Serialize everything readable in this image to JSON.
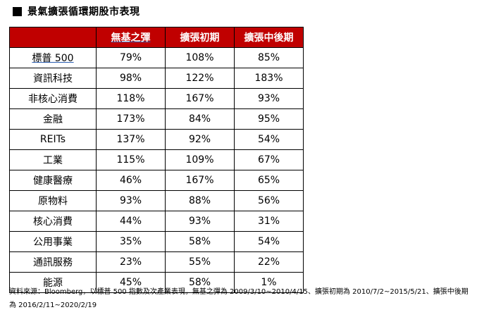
{
  "title": "景氣擴張循環期股市表現",
  "table": {
    "headers": [
      "",
      "無基之彈",
      "擴張初期",
      "擴張中後期"
    ],
    "rows": [
      {
        "label": "標普 500",
        "values": [
          "79%",
          "108%",
          "85%"
        ]
      },
      {
        "label": "資訊科技",
        "values": [
          "98%",
          "122%",
          "183%"
        ]
      },
      {
        "label": "非核心消費",
        "values": [
          "118%",
          "167%",
          "93%"
        ]
      },
      {
        "label": "金融",
        "values": [
          "173%",
          "84%",
          "95%"
        ]
      },
      {
        "label": "REITs",
        "values": [
          "137%",
          "92%",
          "54%"
        ]
      },
      {
        "label": "工業",
        "values": [
          "115%",
          "109%",
          "67%"
        ]
      },
      {
        "label": "健康醫療",
        "values": [
          "46%",
          "167%",
          "65%"
        ]
      },
      {
        "label": "原物料",
        "values": [
          "93%",
          "88%",
          "56%"
        ]
      },
      {
        "label": "核心消費",
        "values": [
          "44%",
          "93%",
          "31%"
        ]
      },
      {
        "label": "公用事業",
        "values": [
          "35%",
          "58%",
          "54%"
        ]
      },
      {
        "label": "通訊服務",
        "values": [
          "23%",
          "55%",
          "22%"
        ]
      },
      {
        "label": "能源",
        "values": [
          "45%",
          "58%",
          "1%"
        ]
      }
    ]
  },
  "footnote": {
    "line1": "資料來源：Bloomberg，以標普 500 指數及次產業表現，無基之彈為 2009/3/10~2010/4/15、擴張初期為 2010/7/2~2015/5/21、擴張中後期",
    "line2": "為 2016/2/11~2020/2/19"
  },
  "colors": {
    "header_bg": "#c00000",
    "header_text": "#ffffff",
    "border": "#000000"
  }
}
